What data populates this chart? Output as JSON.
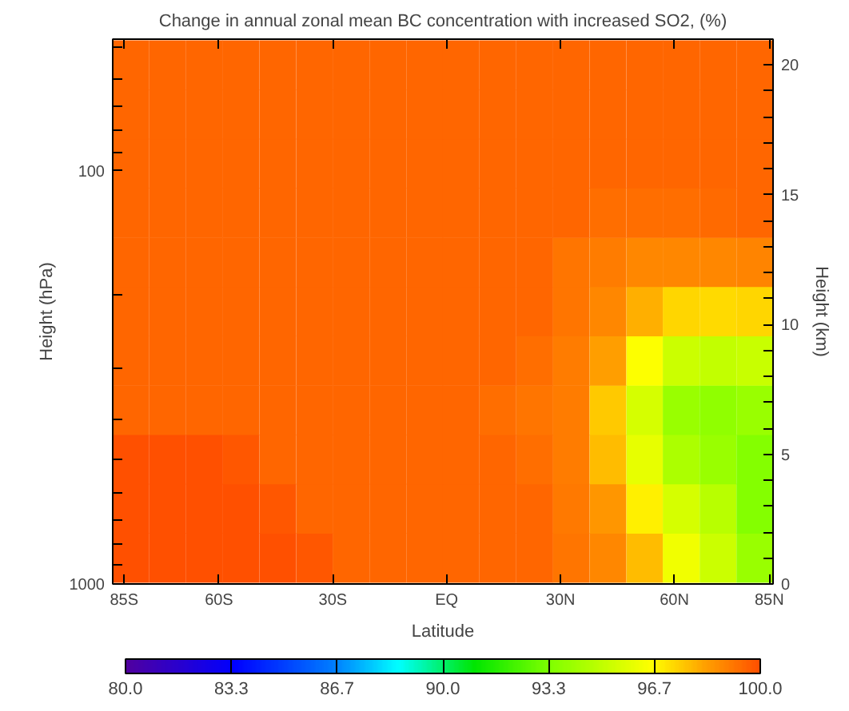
{
  "chart_data": {
    "type": "scatter",
    "marker": "square",
    "title": "Change in annual zonal mean BC concentration with increased SO2, (%)",
    "xlabel": "Latitude",
    "ylabel": "Height (hPa)",
    "y2label": "Height (km)",
    "series": [
      {
        "axis": "y2",
        "x": [
          -83.2,
          -73.5,
          -63.8,
          -54.2,
          -44.5,
          -34.8,
          -25.2,
          -15.5,
          -5.8,
          3.8,
          13.5,
          23.2,
          32.8,
          42.5,
          52.2,
          61.8,
          71.5,
          81.2,
          -83.2,
          -73.5,
          -63.8,
          -54.2,
          -44.5,
          -34.8,
          -25.2,
          -15.5,
          -5.8,
          3.8,
          13.5,
          23.2,
          32.8,
          42.5,
          52.2,
          61.8,
          71.5,
          81.2,
          -83.2,
          -73.5,
          -63.8,
          -54.2,
          -44.5,
          -34.8,
          -25.2,
          -15.5,
          -5.8,
          3.8,
          13.5,
          23.2,
          32.8,
          42.5,
          52.2,
          61.8,
          71.5,
          81.2,
          -83.2,
          -73.5,
          -63.8,
          -54.2,
          -44.5,
          -34.8,
          -25.2,
          -15.5,
          -5.8,
          3.8,
          13.5,
          23.2,
          32.8,
          42.5,
          52.2,
          61.8,
          71.5,
          81.2,
          -83.2,
          -73.5,
          -63.8,
          -54.2,
          -44.5,
          -34.8,
          -25.2,
          -15.5,
          -5.8,
          3.8,
          13.5,
          23.2,
          32.8,
          42.5,
          52.2,
          61.8,
          71.5,
          81.2,
          -83.2,
          -73.5,
          -63.8,
          -54.2,
          -44.5,
          -34.8,
          -25.2,
          -15.5,
          -5.8,
          3.8,
          13.5,
          23.2,
          32.8,
          42.5,
          52.2,
          61.8,
          71.5,
          81.2,
          -83.2,
          -73.5,
          -63.8,
          -54.2,
          -44.5,
          -34.8,
          -25.2,
          -15.5,
          -5.8,
          3.8,
          13.5,
          23.2,
          32.8,
          42.5,
          52.2,
          61.8,
          71.5,
          81.2,
          -83.2,
          -73.5,
          -63.8,
          -54.2,
          -44.5,
          -34.8,
          -25.2,
          -15.5,
          -5.8,
          3.8,
          13.5,
          23.2,
          32.8,
          42.5,
          52.2,
          61.8,
          71.5,
          81.2,
          -83.2,
          -73.5,
          -63.8,
          -54.2,
          -44.5,
          -34.8,
          -25.2,
          -15.5,
          -5.8,
          3.8,
          13.5,
          23.2,
          32.8,
          42.5,
          52.2,
          61.8,
          71.5,
          81.2,
          -83.2,
          -73.5,
          -63.8,
          -54.2,
          -44.5,
          -34.8,
          -25.2,
          -15.5,
          -5.8,
          3.8,
          13.5,
          23.2,
          32.8,
          42.5,
          52.2,
          61.8,
          71.5,
          81.2,
          -83.2,
          -73.5,
          -63.8,
          -54.2,
          -44.5,
          -34.8,
          -25.2,
          -15.5,
          -5.8,
          3.8,
          13.5,
          23.2,
          32.8,
          42.5,
          52.2,
          61.8,
          71.5,
          81.2
        ],
        "values": [
          1.0,
          1.0,
          1.0,
          1.0,
          1.0,
          1.0,
          1.0,
          1.0,
          1.0,
          1.0,
          1.0,
          1.0,
          1.0,
          1.0,
          1.0,
          1.0,
          1.0,
          1.0,
          2.9,
          2.9,
          2.9,
          2.9,
          2.9,
          2.9,
          2.9,
          2.9,
          2.9,
          2.9,
          2.9,
          2.9,
          2.9,
          2.9,
          2.9,
          2.9,
          2.9,
          2.9,
          4.8,
          4.8,
          4.8,
          4.8,
          4.8,
          4.8,
          4.8,
          4.8,
          4.8,
          4.8,
          4.8,
          4.8,
          4.8,
          4.8,
          4.8,
          4.8,
          4.8,
          4.8,
          6.7,
          6.7,
          6.7,
          6.7,
          6.7,
          6.7,
          6.7,
          6.7,
          6.7,
          6.7,
          6.7,
          6.7,
          6.7,
          6.7,
          6.7,
          6.7,
          6.7,
          6.7,
          8.6,
          8.6,
          8.6,
          8.6,
          8.6,
          8.6,
          8.6,
          8.6,
          8.6,
          8.6,
          8.6,
          8.6,
          8.6,
          8.6,
          8.6,
          8.6,
          8.6,
          8.6,
          10.5,
          10.5,
          10.5,
          10.5,
          10.5,
          10.5,
          10.5,
          10.5,
          10.5,
          10.5,
          10.5,
          10.5,
          10.5,
          10.5,
          10.5,
          10.5,
          10.5,
          10.5,
          12.4,
          12.4,
          12.4,
          12.4,
          12.4,
          12.4,
          12.4,
          12.4,
          12.4,
          12.4,
          12.4,
          12.4,
          12.4,
          12.4,
          12.4,
          12.4,
          12.4,
          12.4,
          14.3,
          14.3,
          14.3,
          14.3,
          14.3,
          14.3,
          14.3,
          14.3,
          14.3,
          14.3,
          14.3,
          14.3,
          14.3,
          14.3,
          14.3,
          14.3,
          14.3,
          14.3,
          16.2,
          16.2,
          16.2,
          16.2,
          16.2,
          16.2,
          16.2,
          16.2,
          16.2,
          16.2,
          16.2,
          16.2,
          16.2,
          16.2,
          16.2,
          16.2,
          16.2,
          16.2,
          18.1,
          18.1,
          18.1,
          18.1,
          18.1,
          18.1,
          18.1,
          18.1,
          18.1,
          18.1,
          18.1,
          18.1,
          18.1,
          18.1,
          18.1,
          18.1,
          18.1,
          18.1,
          20.0,
          20.0,
          20.0,
          20.0,
          20.0,
          20.0,
          20.0,
          20.0,
          20.0,
          20.0,
          20.0,
          20.0,
          20.0,
          20.0,
          20.0,
          20.0,
          20.0,
          20.0
        ],
        "cvalues": [
          100,
          100,
          100,
          100,
          100,
          99.8,
          99.5,
          99.5,
          99.5,
          99.5,
          99.5,
          99.5,
          99.2,
          98.8,
          97.8,
          96.2,
          95.3,
          94.0,
          100,
          100,
          100,
          100,
          99.8,
          99.5,
          99.5,
          99.5,
          99.5,
          99.5,
          99.5,
          99.5,
          99.1,
          98.5,
          96.8,
          95.5,
          94.8,
          93.5,
          100,
          100,
          100,
          99.8,
          99.5,
          99.5,
          99.5,
          99.5,
          99.5,
          99.5,
          99.5,
          99.3,
          99.0,
          97.8,
          96.0,
          94.5,
          94.0,
          93.5,
          99.5,
          99.5,
          99.5,
          99.5,
          99.5,
          99.5,
          99.5,
          99.5,
          99.5,
          99.5,
          99.3,
          99.2,
          99.0,
          97.5,
          95.5,
          94.0,
          93.8,
          94.0,
          99.5,
          99.5,
          99.5,
          99.5,
          99.5,
          99.5,
          99.5,
          99.5,
          99.5,
          99.5,
          99.5,
          99.3,
          99.0,
          98.3,
          96.5,
          95.3,
          95.0,
          95.2,
          99.5,
          99.5,
          99.5,
          99.5,
          99.5,
          99.5,
          99.5,
          99.5,
          99.5,
          99.5,
          99.5,
          99.5,
          99.2,
          98.8,
          98.0,
          97.3,
          97.2,
          97.3,
          99.5,
          99.5,
          99.5,
          99.5,
          99.5,
          99.5,
          99.5,
          99.5,
          99.5,
          99.5,
          99.5,
          99.5,
          99.2,
          99.0,
          98.8,
          98.8,
          98.8,
          98.9,
          99.5,
          99.5,
          99.5,
          99.5,
          99.5,
          99.5,
          99.5,
          99.5,
          99.5,
          99.5,
          99.5,
          99.5,
          99.5,
          99.3,
          99.3,
          99.3,
          99.4,
          99.5,
          99.5,
          99.5,
          99.5,
          99.5,
          99.5,
          99.5,
          99.5,
          99.5,
          99.5,
          99.5,
          99.5,
          99.5,
          99.5,
          99.5,
          99.5,
          99.5,
          99.5,
          99.5,
          99.5,
          99.5,
          99.5,
          99.5,
          99.5,
          99.5,
          99.5,
          99.5,
          99.5,
          99.5,
          99.5,
          99.5,
          99.5,
          99.5,
          99.5,
          99.5,
          99.5,
          99.5,
          99.5,
          99.5,
          99.5,
          99.5,
          99.5,
          99.5,
          99.5,
          99.5,
          99.5,
          99.5,
          99.5,
          99.5,
          99.5,
          99.5,
          99.5,
          99.5,
          99.5,
          99.5
        ]
      }
    ],
    "xlim": [
      -88,
      86
    ],
    "xticks": [
      {
        "value": -85,
        "label": "85S"
      },
      {
        "value": -60,
        "label": "60S"
      },
      {
        "value": -30,
        "label": "30S"
      },
      {
        "value": 0,
        "label": "EQ"
      },
      {
        "value": 30,
        "label": "30N"
      },
      {
        "value": 60,
        "label": "60N"
      },
      {
        "value": 85,
        "label": "85N"
      }
    ],
    "ylim": [
      1000,
      48
    ],
    "log": "y",
    "yticks": [
      {
        "value": 50,
        "label": null
      },
      {
        "value": 60,
        "label": null
      },
      {
        "value": 70,
        "label": null
      },
      {
        "value": 80,
        "label": null
      },
      {
        "value": 90,
        "label": null
      },
      100,
      {
        "value": 200,
        "label": null
      },
      {
        "value": 300,
        "label": null
      },
      {
        "value": 400,
        "label": null
      },
      {
        "value": 500,
        "label": null
      },
      {
        "value": 600,
        "label": null
      },
      {
        "value": 700,
        "label": null
      },
      {
        "value": 800,
        "label": null
      },
      {
        "value": 900,
        "label": null
      },
      1000
    ],
    "y2lim": [
      0,
      21
    ],
    "y2ticks": [
      0,
      {
        "value": 1,
        "label": null
      },
      {
        "value": 2,
        "label": null
      },
      {
        "value": 3,
        "label": null
      },
      {
        "value": 4,
        "label": null
      },
      5,
      {
        "value": 6,
        "label": null
      },
      {
        "value": 7,
        "label": null
      },
      {
        "value": 8,
        "label": null
      },
      {
        "value": 9,
        "label": null
      },
      10,
      {
        "value": 11,
        "label": null
      },
      {
        "value": 12,
        "label": null
      },
      {
        "value": 13,
        "label": null
      },
      {
        "value": 14,
        "label": null
      },
      15,
      {
        "value": 16,
        "label": null
      },
      {
        "value": 17,
        "label": null
      },
      {
        "value": 18,
        "label": null
      },
      {
        "value": 19,
        "label": null
      },
      20
    ],
    "clim": [
      80,
      100
    ],
    "cticks": [
      {
        "value": 80,
        "label": "80.0"
      },
      {
        "value": 83.333,
        "label": "83.3"
      },
      {
        "value": 86.667,
        "label": "86.7"
      },
      {
        "value": 90,
        "label": "90.0"
      },
      {
        "value": 93.333,
        "label": "93.3"
      },
      {
        "value": 96.667,
        "label": "96.7"
      },
      {
        "value": 100,
        "label": "100.0"
      }
    ]
  }
}
